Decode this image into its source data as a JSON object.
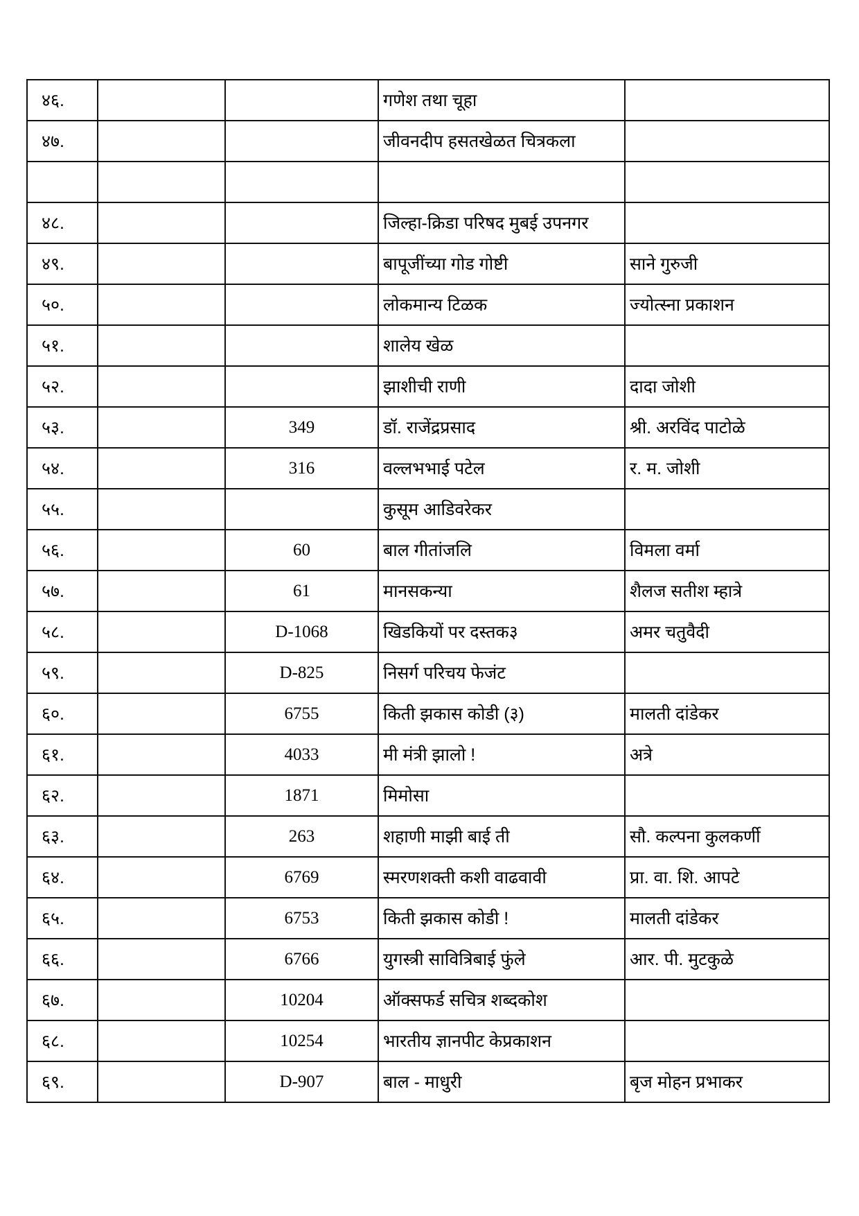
{
  "table": {
    "rows": [
      {
        "no": "४६.",
        "col2": "",
        "code": "",
        "title": "गणेश तथा चूहा",
        "author": ""
      },
      {
        "no": "४७.",
        "col2": "",
        "code": "",
        "title": "जीवनदीप हसतखेळत चित्रकला",
        "author": ""
      },
      {
        "no": "",
        "col2": "",
        "code": "",
        "title": "",
        "author": ""
      },
      {
        "no": "४८.",
        "col2": "",
        "code": "",
        "title": "जिल्हा-क्रिडा परिषद    मुबई उपनगर",
        "author": ""
      },
      {
        "no": "४९.",
        "col2": "",
        "code": "",
        "title": "बापूजींच्या गोड गोष्टी",
        "author": "साने गुरुजी"
      },
      {
        "no": "५०.",
        "col2": "",
        "code": "",
        "title": "लोकमान्य टिळक",
        "author": "ज्योत्स्ना प्रकाशन"
      },
      {
        "no": "५१.",
        "col2": "",
        "code": "",
        "title": "शालेय खेळ",
        "author": ""
      },
      {
        "no": "५२.",
        "col2": "",
        "code": "",
        "title": "झाशीची राणी",
        "author": "दादा जोशी"
      },
      {
        "no": "५३.",
        "col2": "",
        "code": "349",
        "title": "डॉ. राजेंद्रप्रसाद",
        "author": "श्री. अरविंद पाटोळे"
      },
      {
        "no": "५४.",
        "col2": "",
        "code": "316",
        "title": "वल्लभभाई पटेल",
        "author": "र. म. जोशी"
      },
      {
        "no": "५५.",
        "col2": "",
        "code": "",
        "title": "कुसूम आडिवरेकर",
        "author": ""
      },
      {
        "no": "५६.",
        "col2": "",
        "code": "60",
        "title": "बाल गीतांजलि",
        "author": "विमला वर्मा"
      },
      {
        "no": "५७.",
        "col2": "",
        "code": "61",
        "title": "मानसकन्या",
        "author": "शैलज सतीश म्हात्रे"
      },
      {
        "no": "५८.",
        "col2": "",
        "code": "D-1068",
        "title": "खिडकियों पर दस्तक३",
        "author": "अमर चतुवैदी"
      },
      {
        "no": "५९.",
        "col2": "",
        "code": "D-825",
        "title": "निसर्ग परिचय फेजंट",
        "author": ""
      },
      {
        "no": "६०.",
        "col2": "",
        "code": "6755",
        "title": "किती झकास कोडी (३)",
        "author": "मालती दांडेकर"
      },
      {
        "no": "६१.",
        "col2": "",
        "code": "4033",
        "title": "मी मंत्री झालो !",
        "author": "अत्रे"
      },
      {
        "no": "६२.",
        "col2": "",
        "code": "1871",
        "title": "मिमोसा",
        "author": ""
      },
      {
        "no": "६३.",
        "col2": "",
        "code": "263",
        "title": "शहाणी माझी बाई ती",
        "author": "सौ. कल्पना कुलकर्णी"
      },
      {
        "no": "६४.",
        "col2": "",
        "code": "6769",
        "title": "स्मरणशक्ती कशी वाढवावी",
        "author": "प्रा. वा. शि. आपटे"
      },
      {
        "no": "६५.",
        "col2": "",
        "code": "6753",
        "title": "किती झकास कोडी !",
        "author": "मालती दांडेकर"
      },
      {
        "no": "६६.",
        "col2": "",
        "code": "6766",
        "title": "युगस्त्री सावित्रिबाई फुंले",
        "author": "आर. पी. मुटकुळे"
      },
      {
        "no": "६७.",
        "col2": "",
        "code": "10204",
        "title": "ऑक्सफर्ड सचित्र शब्दकोश",
        "author": ""
      },
      {
        "no": "६८.",
        "col2": "",
        "code": "10254",
        "title": "भारतीय ज्ञानपीट केप्रकाशन",
        "author": ""
      },
      {
        "no": "६९.",
        "col2": "",
        "code": "D-907",
        "title": "बाल - माधुरी",
        "author": "बृज मोहन प्रभाकर"
      }
    ]
  }
}
